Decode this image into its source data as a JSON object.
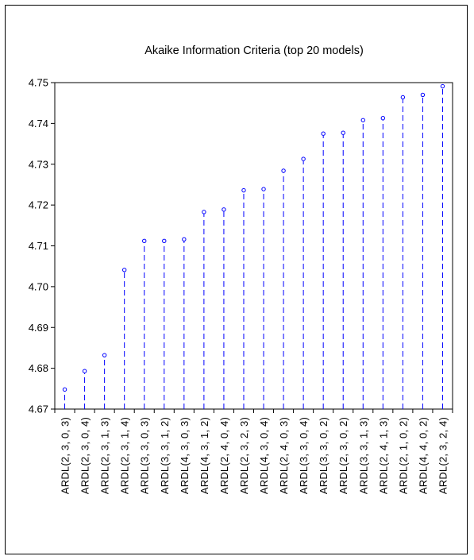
{
  "chart_data": {
    "type": "scatter",
    "style": "dropline",
    "title": "Akaike Information Criteria (top 20 models)",
    "xlabel": "",
    "ylabel": "",
    "ylim": [
      4.67,
      4.75
    ],
    "yticks": [
      4.67,
      4.68,
      4.69,
      4.7,
      4.71,
      4.72,
      4.73,
      4.74,
      4.75
    ],
    "ytick_labels": [
      "4.67",
      "4.68",
      "4.69",
      "4.70",
      "4.71",
      "4.72",
      "4.73",
      "4.74",
      "4.75"
    ],
    "grid": false,
    "color": "#0000ff",
    "categories": [
      "ARDL(2, 3, 0, 3)",
      "ARDL(2, 3, 0, 4)",
      "ARDL(2, 3, 1, 3)",
      "ARDL(2, 3, 1, 4)",
      "ARDL(3, 3, 0, 3)",
      "ARDL(3, 3, 1, 2)",
      "ARDL(4, 3, 0, 3)",
      "ARDL(4, 3, 1, 2)",
      "ARDL(2, 4, 0, 4)",
      "ARDL(2, 3, 2, 3)",
      "ARDL(4, 3, 0, 4)",
      "ARDL(2, 4, 0, 3)",
      "ARDL(3, 3, 0, 4)",
      "ARDL(3, 3, 0, 2)",
      "ARDL(2, 3, 0, 2)",
      "ARDL(3, 3, 1, 3)",
      "ARDL(2, 4, 1, 3)",
      "ARDL(2, 1, 0, 2)",
      "ARDL(4, 4, 0, 2)",
      "ARDL(2, 3, 2, 4)"
    ],
    "values": [
      4.6748,
      4.6793,
      4.6832,
      4.7041,
      4.7112,
      4.7112,
      4.7116,
      4.7183,
      4.7189,
      4.7236,
      4.7239,
      4.7284,
      4.7313,
      4.7375,
      4.7377,
      4.7408,
      4.7413,
      4.7464,
      4.747,
      4.7491
    ]
  }
}
